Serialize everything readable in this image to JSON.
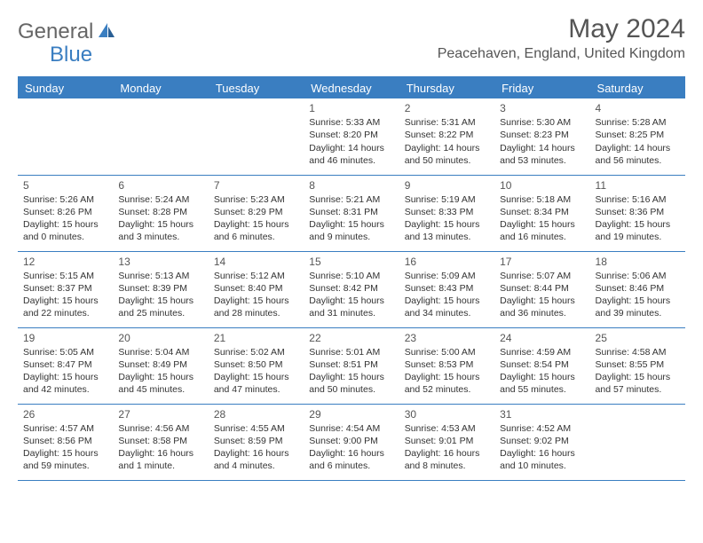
{
  "brand": {
    "part1": "General",
    "part2": "Blue"
  },
  "title": "May 2024",
  "location": "Peacehaven, England, United Kingdom",
  "colors": {
    "accent": "#3a7ec1",
    "text": "#333333",
    "heading": "#555555",
    "background": "#ffffff"
  },
  "dayHeaders": [
    "Sunday",
    "Monday",
    "Tuesday",
    "Wednesday",
    "Thursday",
    "Friday",
    "Saturday"
  ],
  "weeks": [
    [
      null,
      null,
      null,
      {
        "n": "1",
        "sr": "Sunrise: 5:33 AM",
        "ss": "Sunset: 8:20 PM",
        "d1": "Daylight: 14 hours",
        "d2": "and 46 minutes."
      },
      {
        "n": "2",
        "sr": "Sunrise: 5:31 AM",
        "ss": "Sunset: 8:22 PM",
        "d1": "Daylight: 14 hours",
        "d2": "and 50 minutes."
      },
      {
        "n": "3",
        "sr": "Sunrise: 5:30 AM",
        "ss": "Sunset: 8:23 PM",
        "d1": "Daylight: 14 hours",
        "d2": "and 53 minutes."
      },
      {
        "n": "4",
        "sr": "Sunrise: 5:28 AM",
        "ss": "Sunset: 8:25 PM",
        "d1": "Daylight: 14 hours",
        "d2": "and 56 minutes."
      }
    ],
    [
      {
        "n": "5",
        "sr": "Sunrise: 5:26 AM",
        "ss": "Sunset: 8:26 PM",
        "d1": "Daylight: 15 hours",
        "d2": "and 0 minutes."
      },
      {
        "n": "6",
        "sr": "Sunrise: 5:24 AM",
        "ss": "Sunset: 8:28 PM",
        "d1": "Daylight: 15 hours",
        "d2": "and 3 minutes."
      },
      {
        "n": "7",
        "sr": "Sunrise: 5:23 AM",
        "ss": "Sunset: 8:29 PM",
        "d1": "Daylight: 15 hours",
        "d2": "and 6 minutes."
      },
      {
        "n": "8",
        "sr": "Sunrise: 5:21 AM",
        "ss": "Sunset: 8:31 PM",
        "d1": "Daylight: 15 hours",
        "d2": "and 9 minutes."
      },
      {
        "n": "9",
        "sr": "Sunrise: 5:19 AM",
        "ss": "Sunset: 8:33 PM",
        "d1": "Daylight: 15 hours",
        "d2": "and 13 minutes."
      },
      {
        "n": "10",
        "sr": "Sunrise: 5:18 AM",
        "ss": "Sunset: 8:34 PM",
        "d1": "Daylight: 15 hours",
        "d2": "and 16 minutes."
      },
      {
        "n": "11",
        "sr": "Sunrise: 5:16 AM",
        "ss": "Sunset: 8:36 PM",
        "d1": "Daylight: 15 hours",
        "d2": "and 19 minutes."
      }
    ],
    [
      {
        "n": "12",
        "sr": "Sunrise: 5:15 AM",
        "ss": "Sunset: 8:37 PM",
        "d1": "Daylight: 15 hours",
        "d2": "and 22 minutes."
      },
      {
        "n": "13",
        "sr": "Sunrise: 5:13 AM",
        "ss": "Sunset: 8:39 PM",
        "d1": "Daylight: 15 hours",
        "d2": "and 25 minutes."
      },
      {
        "n": "14",
        "sr": "Sunrise: 5:12 AM",
        "ss": "Sunset: 8:40 PM",
        "d1": "Daylight: 15 hours",
        "d2": "and 28 minutes."
      },
      {
        "n": "15",
        "sr": "Sunrise: 5:10 AM",
        "ss": "Sunset: 8:42 PM",
        "d1": "Daylight: 15 hours",
        "d2": "and 31 minutes."
      },
      {
        "n": "16",
        "sr": "Sunrise: 5:09 AM",
        "ss": "Sunset: 8:43 PM",
        "d1": "Daylight: 15 hours",
        "d2": "and 34 minutes."
      },
      {
        "n": "17",
        "sr": "Sunrise: 5:07 AM",
        "ss": "Sunset: 8:44 PM",
        "d1": "Daylight: 15 hours",
        "d2": "and 36 minutes."
      },
      {
        "n": "18",
        "sr": "Sunrise: 5:06 AM",
        "ss": "Sunset: 8:46 PM",
        "d1": "Daylight: 15 hours",
        "d2": "and 39 minutes."
      }
    ],
    [
      {
        "n": "19",
        "sr": "Sunrise: 5:05 AM",
        "ss": "Sunset: 8:47 PM",
        "d1": "Daylight: 15 hours",
        "d2": "and 42 minutes."
      },
      {
        "n": "20",
        "sr": "Sunrise: 5:04 AM",
        "ss": "Sunset: 8:49 PM",
        "d1": "Daylight: 15 hours",
        "d2": "and 45 minutes."
      },
      {
        "n": "21",
        "sr": "Sunrise: 5:02 AM",
        "ss": "Sunset: 8:50 PM",
        "d1": "Daylight: 15 hours",
        "d2": "and 47 minutes."
      },
      {
        "n": "22",
        "sr": "Sunrise: 5:01 AM",
        "ss": "Sunset: 8:51 PM",
        "d1": "Daylight: 15 hours",
        "d2": "and 50 minutes."
      },
      {
        "n": "23",
        "sr": "Sunrise: 5:00 AM",
        "ss": "Sunset: 8:53 PM",
        "d1": "Daylight: 15 hours",
        "d2": "and 52 minutes."
      },
      {
        "n": "24",
        "sr": "Sunrise: 4:59 AM",
        "ss": "Sunset: 8:54 PM",
        "d1": "Daylight: 15 hours",
        "d2": "and 55 minutes."
      },
      {
        "n": "25",
        "sr": "Sunrise: 4:58 AM",
        "ss": "Sunset: 8:55 PM",
        "d1": "Daylight: 15 hours",
        "d2": "and 57 minutes."
      }
    ],
    [
      {
        "n": "26",
        "sr": "Sunrise: 4:57 AM",
        "ss": "Sunset: 8:56 PM",
        "d1": "Daylight: 15 hours",
        "d2": "and 59 minutes."
      },
      {
        "n": "27",
        "sr": "Sunrise: 4:56 AM",
        "ss": "Sunset: 8:58 PM",
        "d1": "Daylight: 16 hours",
        "d2": "and 1 minute."
      },
      {
        "n": "28",
        "sr": "Sunrise: 4:55 AM",
        "ss": "Sunset: 8:59 PM",
        "d1": "Daylight: 16 hours",
        "d2": "and 4 minutes."
      },
      {
        "n": "29",
        "sr": "Sunrise: 4:54 AM",
        "ss": "Sunset: 9:00 PM",
        "d1": "Daylight: 16 hours",
        "d2": "and 6 minutes."
      },
      {
        "n": "30",
        "sr": "Sunrise: 4:53 AM",
        "ss": "Sunset: 9:01 PM",
        "d1": "Daylight: 16 hours",
        "d2": "and 8 minutes."
      },
      {
        "n": "31",
        "sr": "Sunrise: 4:52 AM",
        "ss": "Sunset: 9:02 PM",
        "d1": "Daylight: 16 hours",
        "d2": "and 10 minutes."
      },
      null
    ]
  ]
}
